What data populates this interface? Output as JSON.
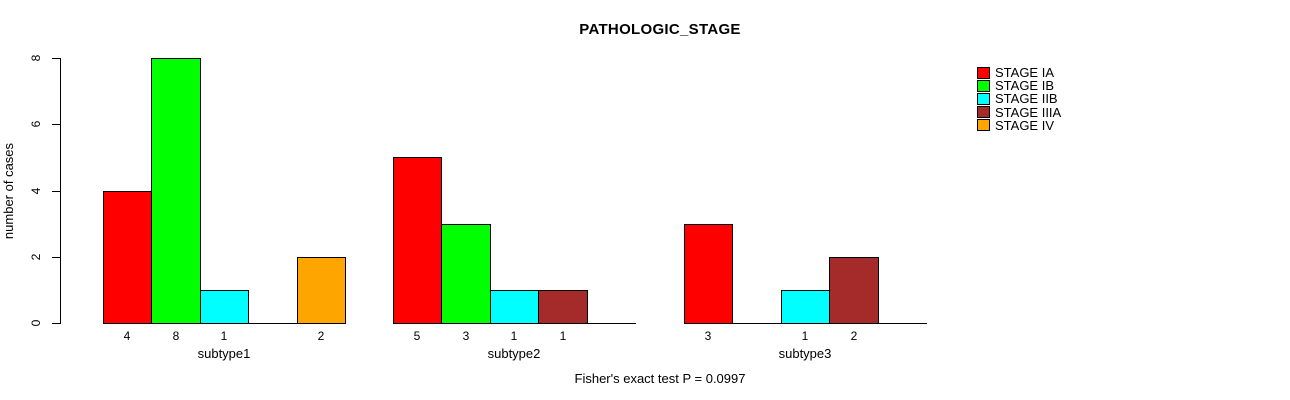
{
  "chart_data": {
    "type": "bar",
    "title": "PATHOLOGIC_STAGE",
    "xlabel": "",
    "ylabel": "number of cases",
    "ylim": [
      0,
      8
    ],
    "yticks": [
      0,
      2,
      4,
      6,
      8
    ],
    "grid": false,
    "legend_position": "right",
    "categories": [
      "subtype1",
      "subtype2",
      "subtype3"
    ],
    "series": [
      {
        "name": "STAGE IA",
        "color": "#FF0000",
        "values": [
          4,
          5,
          3
        ]
      },
      {
        "name": "STAGE IB",
        "color": "#00FF00",
        "values": [
          8,
          3,
          0
        ]
      },
      {
        "name": "STAGE IIB",
        "color": "#00FFFF",
        "values": [
          1,
          1,
          1
        ]
      },
      {
        "name": "STAGE IIIA",
        "color": "#A52A2A",
        "values": [
          0,
          1,
          2
        ]
      },
      {
        "name": "STAGE IV",
        "color": "#FFA500",
        "values": [
          2,
          0,
          0
        ]
      }
    ],
    "bar_value_labels": "value shown under each nonzero bar; zero-value slots are empty gaps",
    "annotation": "Fisher's exact test P = 0.0997",
    "axis_color": "#000000",
    "bar_border_color": "#000000",
    "background_color": "#FFFFFF"
  }
}
